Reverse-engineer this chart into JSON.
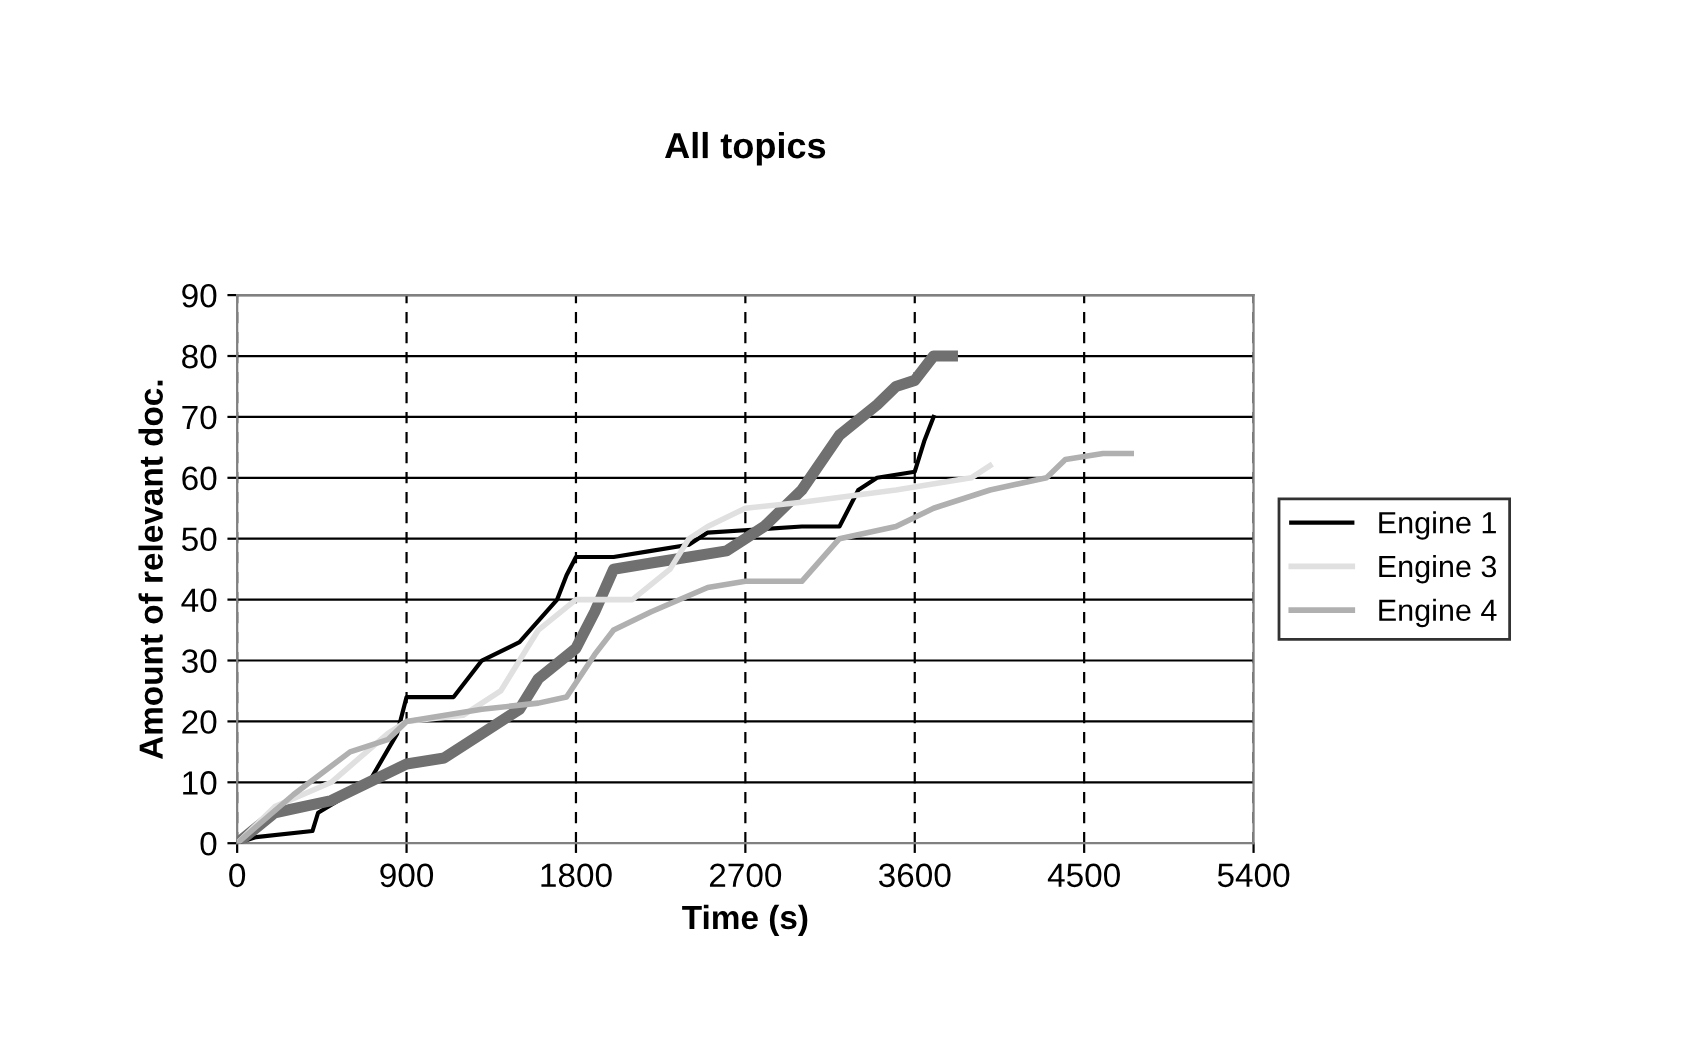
{
  "chart_data": {
    "type": "line",
    "title": "All topics",
    "xlabel": "Time (s)",
    "ylabel": "Amount of relevant doc.",
    "xlim": [
      0,
      5400
    ],
    "xticks": [
      0,
      900,
      1800,
      2700,
      3600,
      4500,
      5400
    ],
    "ylim": [
      0,
      90
    ],
    "yticks": [
      0,
      10,
      20,
      30,
      40,
      50,
      60,
      70,
      80,
      90
    ],
    "grid": true,
    "legend": "right",
    "marker": "none",
    "line_style": "solid",
    "series": [
      {
        "name": "Engine 1",
        "color": "#000000",
        "x": [
          0,
          100,
          400,
          430,
          700,
          850,
          900,
          1150,
          1300,
          1500,
          1700,
          1750,
          1800,
          2000,
          2200,
          2400,
          2500,
          3000,
          3200,
          3300,
          3400,
          3600,
          3650,
          3700
        ],
        "values": [
          0,
          1,
          2,
          5,
          10,
          18,
          24,
          24,
          30,
          33,
          40,
          44,
          47,
          47,
          48,
          49,
          51,
          52,
          52,
          58,
          60,
          61,
          66,
          70
        ]
      },
      {
        "color": "#707070",
        "x": [
          0,
          200,
          500,
          700,
          900,
          1100,
          1300,
          1500,
          1600,
          1800,
          1900,
          2000,
          2200,
          2400,
          2600,
          2800,
          3000,
          3200,
          3400,
          3500,
          3600,
          3700,
          3800
        ],
        "values": [
          0,
          5,
          7,
          10,
          13,
          14,
          18,
          22,
          27,
          32,
          38,
          45,
          46,
          47,
          48,
          52,
          58,
          67,
          72,
          75,
          76,
          80,
          80
        ]
      },
      {
        "name": "Engine 3",
        "color": "#e0e0e0",
        "x": [
          0,
          200,
          500,
          800,
          900,
          1200,
          1400,
          1600,
          1800,
          2100,
          2300,
          2400,
          2500,
          2700,
          3000,
          3500,
          3900,
          4000
        ],
        "values": [
          0,
          6,
          10,
          18,
          20,
          21,
          25,
          35,
          40,
          40,
          45,
          50,
          52,
          55,
          56,
          58,
          60,
          62
        ]
      },
      {
        "name": "Engine 4",
        "color": "#b0b0b0",
        "x": [
          0,
          300,
          600,
          800,
          900,
          1300,
          1600,
          1750,
          1900,
          2000,
          2200,
          2500,
          2700,
          3000,
          3200,
          3500,
          3700,
          4000,
          4300,
          4400,
          4600,
          4750
        ],
        "values": [
          0,
          8,
          15,
          17,
          20,
          22,
          23,
          24,
          31,
          35,
          38,
          42,
          43,
          43,
          50,
          52,
          55,
          58,
          60,
          63,
          64,
          64
        ]
      }
    ]
  }
}
